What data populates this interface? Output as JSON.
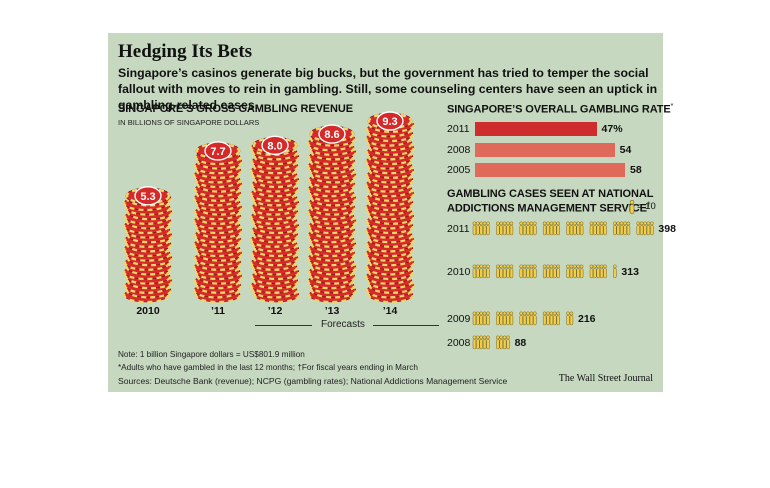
{
  "header": {
    "headline": "Hedging Its Bets",
    "dek": "Singapore’s casinos generate big bucks, but the government has tried to temper the social fallout with moves to rein in gambling. Still, some counseling centers have seen an uptick in gambling-related cases."
  },
  "revenue": {
    "title": "SINGAPORE’S GROSS GAMBLING REVENUE",
    "subtitle": "IN BILLIONS OF SINGAPORE DOLLARS",
    "forecasts_label": "Forecasts"
  },
  "rate": {
    "title": "SINGAPORE’S OVERALL GAMBLING RATE",
    "title_mark": "*"
  },
  "cases": {
    "title_line1": "GAMBLING CASES SEEN AT NATIONAL",
    "title_line2": "ADDICTIONS MANAGEMENT SERVICE",
    "title_mark": "†",
    "legend_text": "= 10",
    "legend_icon": "person-icon"
  },
  "notes": {
    "note1": "Note: 1 billion Singapore dollars = US$801.9 million",
    "note2": "*Adults who have gambled in the last 12 months; †For fiscal years ending in March",
    "sources": "Sources: Deutsche Bank (revenue); NCPG (gambling rates); National Addictions Management Service",
    "credit": "The Wall Street Journal"
  },
  "colors": {
    "background": "#c6d8c0",
    "chip_red": "#d42a2a",
    "chip_yellow": "#f1d66a",
    "bar_dark": "#cf2d2d",
    "bar_light": "#df6a5a",
    "person": "#f1cf4e"
  },
  "chart_data": [
    {
      "type": "bar",
      "title": "SINGAPORE’S GROSS GAMBLING REVENUE",
      "ylabel": "IN BILLIONS OF SINGAPORE DOLLARS",
      "categories": [
        "2010",
        "’11",
        "’12",
        "’13",
        "’14"
      ],
      "values": [
        5.3,
        7.7,
        8.0,
        8.6,
        9.3
      ],
      "value_labels": [
        "5.3",
        "7.7",
        "8.0",
        "8.6",
        "9.3"
      ],
      "forecast": [
        false,
        false,
        true,
        true,
        true
      ],
      "ylim": [
        0,
        9.3
      ],
      "grid": false
    },
    {
      "type": "bar",
      "orientation": "horizontal",
      "title": "SINGAPORE’S OVERALL GAMBLING RATE",
      "categories": [
        "2011",
        "2008",
        "2005"
      ],
      "values": [
        47,
        54,
        58
      ],
      "value_labels": [
        "47%",
        "54",
        "58"
      ],
      "xlim": [
        0,
        58
      ],
      "grid": false
    },
    {
      "type": "bar",
      "orientation": "horizontal",
      "title": "GAMBLING CASES SEEN AT NATIONAL ADDICTIONS MANAGEMENT SERVICE",
      "categories": [
        "2011",
        "2010",
        "2009",
        "2008"
      ],
      "values": [
        398,
        313,
        216,
        88
      ],
      "value_labels": [
        "398",
        "313",
        "216",
        "88"
      ],
      "unit_per_icon": 10
    }
  ]
}
